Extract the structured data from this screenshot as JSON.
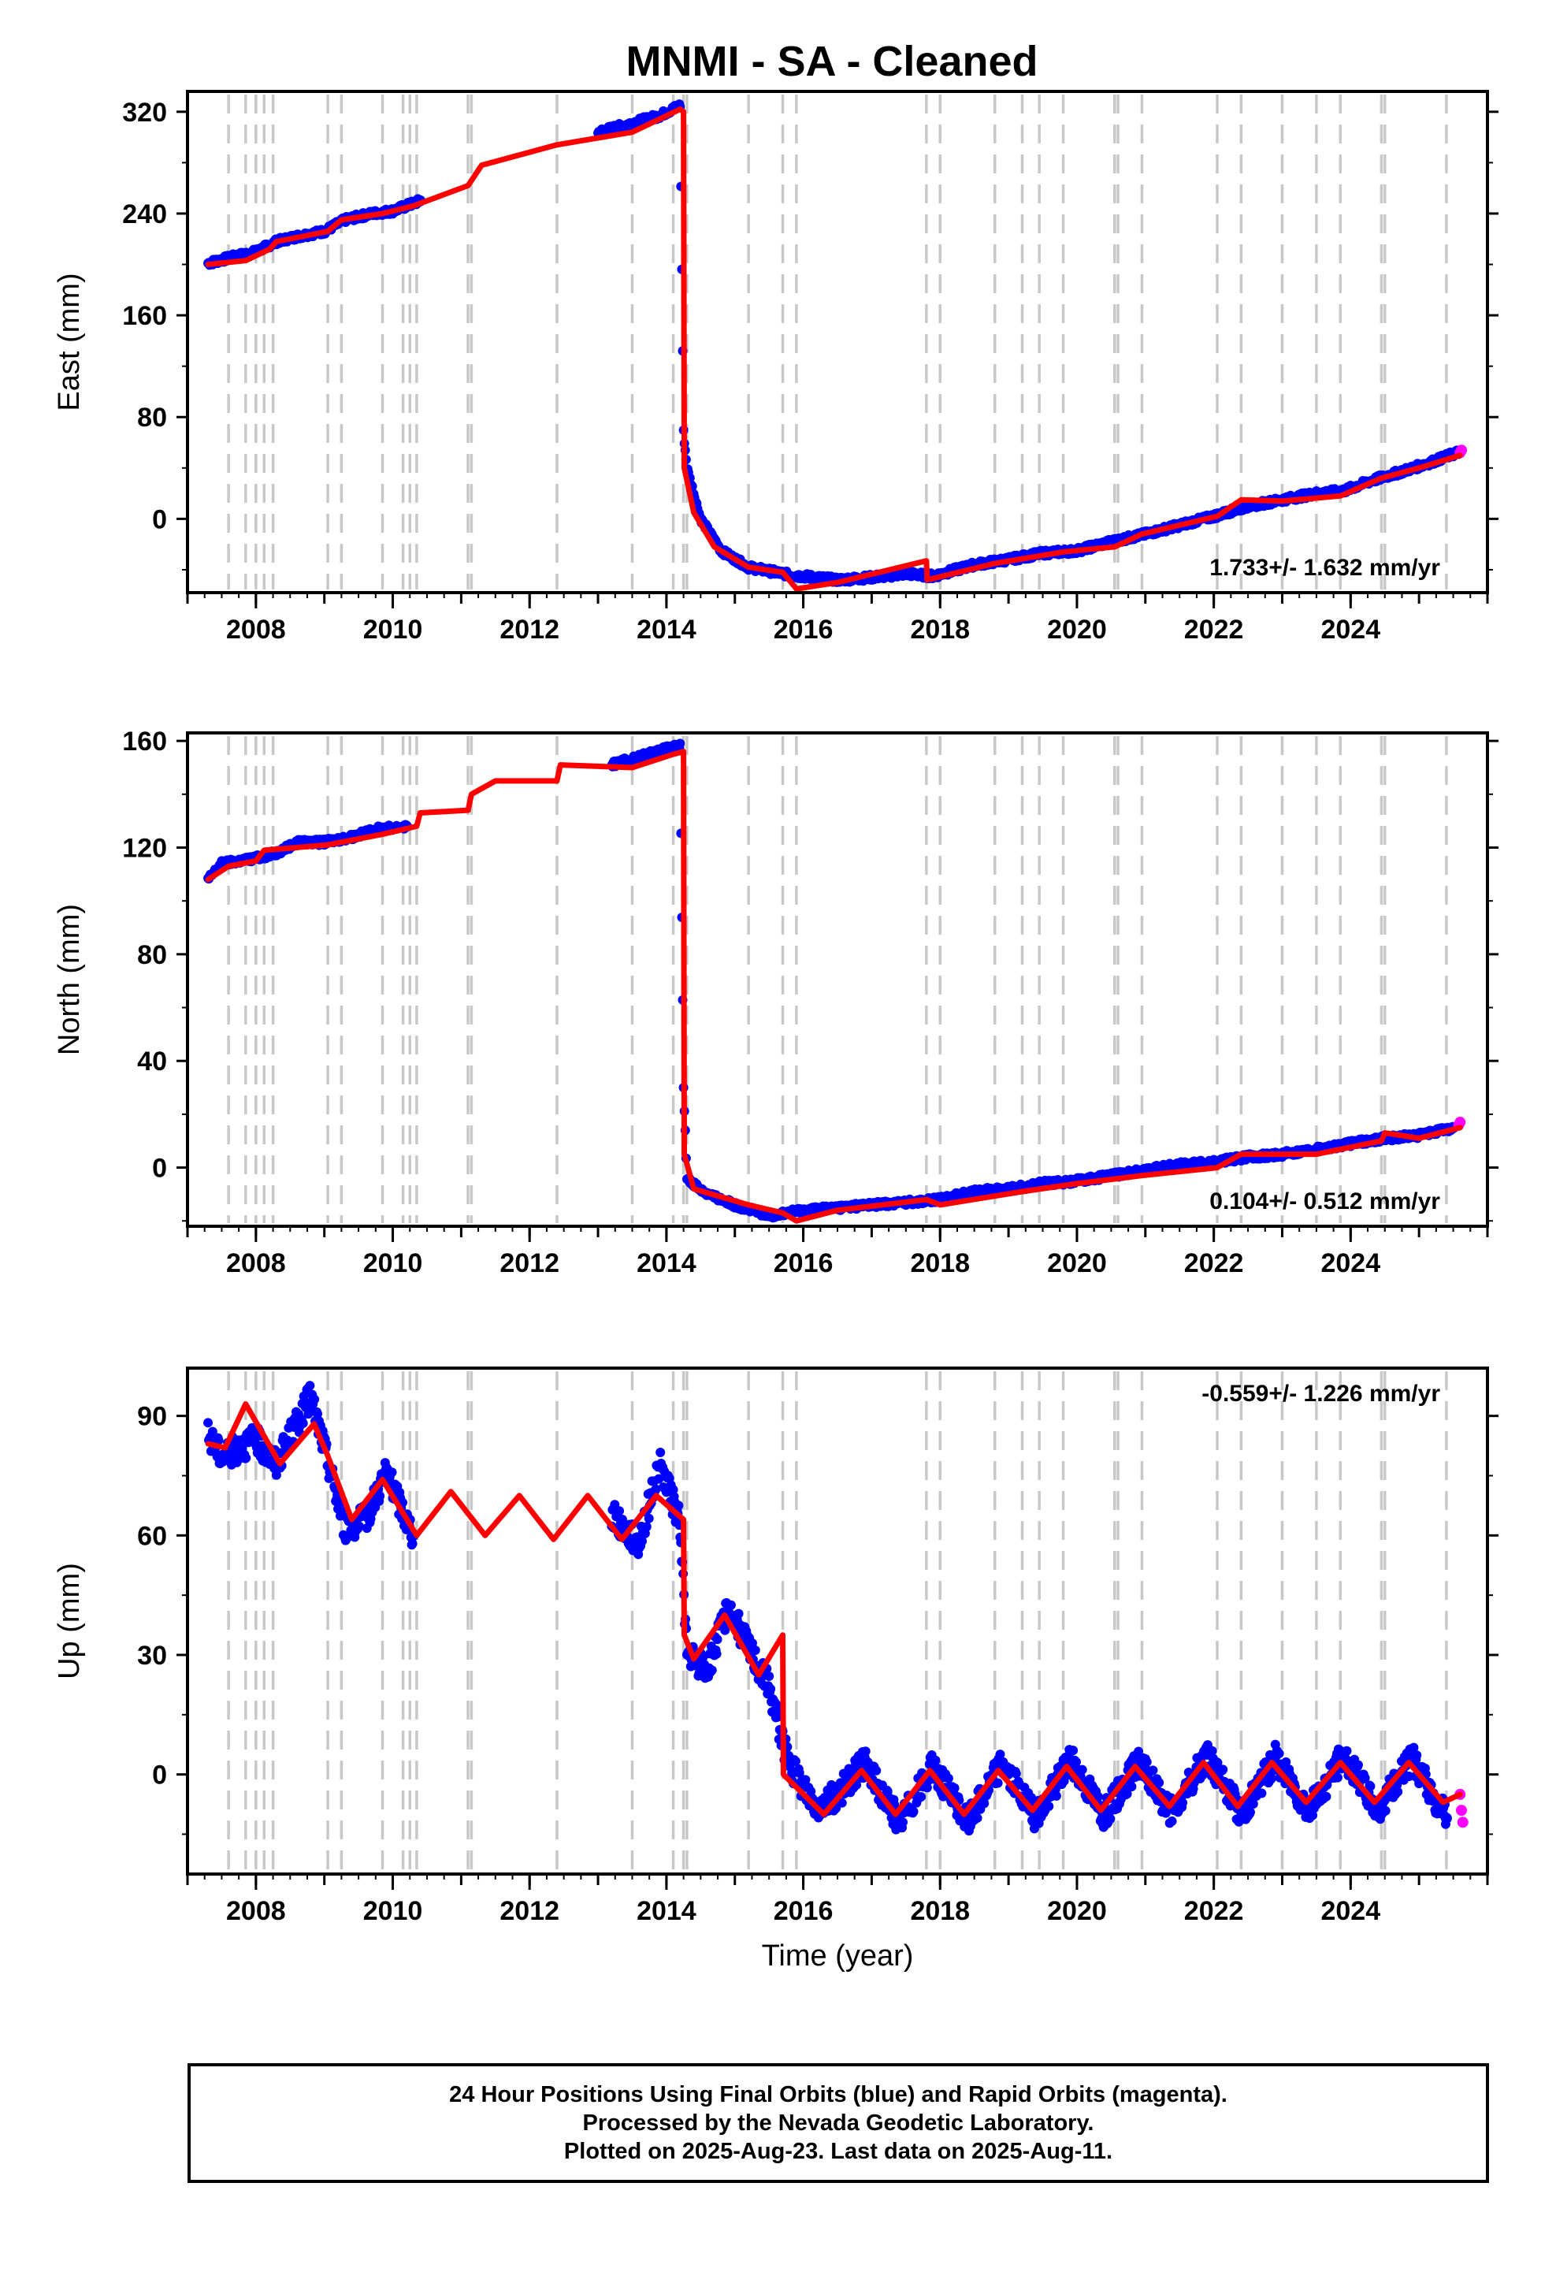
{
  "title": "MNMI  - SA - Cleaned",
  "colors": {
    "final": "#0000ff",
    "rapid": "#ff00ff",
    "model": "#ff0000",
    "steps": "#c8c8c8"
  },
  "footer": {
    "line1": "24 Hour Positions Using Final Orbits (blue) and Rapid Orbits (magenta).",
    "line2": "Processed by the Nevada Geodetic Laboratory.",
    "line3": "Plotted on 2025-Aug-23. Last data on 2025-Aug-11."
  },
  "chart_data": [
    {
      "type": "scatter",
      "component": "east",
      "ylabel": "East (mm)",
      "xlabel": "",
      "rate": "1.733+/- 1.632 mm/yr",
      "xlim": [
        2007.0,
        2026.0
      ],
      "ylim": [
        -58,
        336
      ],
      "yticks": [
        0,
        80,
        160,
        240,
        320
      ],
      "xticks": [
        2008,
        2010,
        2012,
        2014,
        2016,
        2018,
        2020,
        2022,
        2024
      ],
      "step_epochs": [
        2007.6,
        2007.85,
        2008.0,
        2008.12,
        2008.25,
        2009.05,
        2009.25,
        2009.85,
        2010.15,
        2010.25,
        2010.35,
        2011.1,
        2011.15,
        2012.4,
        2013.5,
        2014.1,
        2014.25,
        2014.3,
        2015.2,
        2015.7,
        2015.9,
        2017.8,
        2018.0,
        2018.8,
        2019.2,
        2019.45,
        2019.8,
        2020.55,
        2020.6,
        2020.95,
        2022.05,
        2022.4,
        2023.0,
        2023.5,
        2023.85,
        2024.45,
        2024.5,
        2025.4
      ],
      "observations": [
        {
          "x": 2007.3,
          "y": 201
        },
        {
          "x": 2007.6,
          "y": 205
        },
        {
          "x": 2008.0,
          "y": 210
        },
        {
          "x": 2008.3,
          "y": 218
        },
        {
          "x": 2008.6,
          "y": 222
        },
        {
          "x": 2009.0,
          "y": 226
        },
        {
          "x": 2009.3,
          "y": 235
        },
        {
          "x": 2009.7,
          "y": 240
        },
        {
          "x": 2010.0,
          "y": 242
        },
        {
          "x": 2010.4,
          "y": 250
        },
        {
          "x": 2013.0,
          "y": 304
        },
        {
          "x": 2013.5,
          "y": 311
        },
        {
          "x": 2013.9,
          "y": 317
        },
        {
          "x": 2014.2,
          "y": 325
        },
        {
          "x": 2014.25,
          "y": 68
        },
        {
          "x": 2014.3,
          "y": 40
        },
        {
          "x": 2014.5,
          "y": 0
        },
        {
          "x": 2014.8,
          "y": -25
        },
        {
          "x": 2015.2,
          "y": -38
        },
        {
          "x": 2015.8,
          "y": -44
        },
        {
          "x": 2016.5,
          "y": -48
        },
        {
          "x": 2017.0,
          "y": -46
        },
        {
          "x": 2017.5,
          "y": -43
        },
        {
          "x": 2017.9,
          "y": -45
        },
        {
          "x": 2018.5,
          "y": -36
        },
        {
          "x": 2019.0,
          "y": -32
        },
        {
          "x": 2019.5,
          "y": -27
        },
        {
          "x": 2020.0,
          "y": -25
        },
        {
          "x": 2020.5,
          "y": -18
        },
        {
          "x": 2021.0,
          "y": -12
        },
        {
          "x": 2021.5,
          "y": -5
        },
        {
          "x": 2022.0,
          "y": 2
        },
        {
          "x": 2022.5,
          "y": 10
        },
        {
          "x": 2023.0,
          "y": 15
        },
        {
          "x": 2023.5,
          "y": 20
        },
        {
          "x": 2023.9,
          "y": 22
        },
        {
          "x": 2024.3,
          "y": 30
        },
        {
          "x": 2024.8,
          "y": 38
        },
        {
          "x": 2025.2,
          "y": 45
        },
        {
          "x": 2025.6,
          "y": 53
        }
      ],
      "rapid_points": [
        {
          "x": 2025.6,
          "y": 52
        },
        {
          "x": 2025.62,
          "y": 54
        }
      ],
      "model": [
        {
          "x": 2007.3,
          "y": 200
        },
        {
          "x": 2007.85,
          "y": 203
        },
        {
          "x": 2008.2,
          "y": 212
        },
        {
          "x": 2008.3,
          "y": 218
        },
        {
          "x": 2009.05,
          "y": 226
        },
        {
          "x": 2009.25,
          "y": 235
        },
        {
          "x": 2009.85,
          "y": 240
        },
        {
          "x": 2010.3,
          "y": 246
        },
        {
          "x": 2011.1,
          "y": 262
        },
        {
          "x": 2011.3,
          "y": 278
        },
        {
          "x": 2012.4,
          "y": 294
        },
        {
          "x": 2013.5,
          "y": 304
        },
        {
          "x": 2014.2,
          "y": 322
        },
        {
          "x": 2014.25,
          "y": 320
        },
        {
          "x": 2014.26,
          "y": 40
        },
        {
          "x": 2014.4,
          "y": 5
        },
        {
          "x": 2014.7,
          "y": -22
        },
        {
          "x": 2015.2,
          "y": -38
        },
        {
          "x": 2015.7,
          "y": -42
        },
        {
          "x": 2015.9,
          "y": -55
        },
        {
          "x": 2016.5,
          "y": -50
        },
        {
          "x": 2017.8,
          "y": -33
        },
        {
          "x": 2017.81,
          "y": -48
        },
        {
          "x": 2018.8,
          "y": -35
        },
        {
          "x": 2019.8,
          "y": -26
        },
        {
          "x": 2020.55,
          "y": -22
        },
        {
          "x": 2020.95,
          "y": -12
        },
        {
          "x": 2022.05,
          "y": 2
        },
        {
          "x": 2022.4,
          "y": 15
        },
        {
          "x": 2023.0,
          "y": 14
        },
        {
          "x": 2023.85,
          "y": 18
        },
        {
          "x": 2024.45,
          "y": 32
        },
        {
          "x": 2025.0,
          "y": 40
        },
        {
          "x": 2025.6,
          "y": 50
        }
      ]
    },
    {
      "type": "scatter",
      "component": "north",
      "ylabel": "North (mm)",
      "xlabel": "",
      "rate": "0.104+/- 0.512 mm/yr",
      "xlim": [
        2007.0,
        2026.0
      ],
      "ylim": [
        -22,
        163
      ],
      "yticks": [
        0,
        40,
        80,
        120,
        160
      ],
      "xticks": [
        2008,
        2010,
        2012,
        2014,
        2016,
        2018,
        2020,
        2022,
        2024
      ],
      "step_epochs": [
        2007.6,
        2007.85,
        2008.0,
        2008.12,
        2008.25,
        2009.05,
        2009.25,
        2009.85,
        2010.15,
        2010.25,
        2010.35,
        2011.1,
        2011.15,
        2012.4,
        2013.5,
        2014.1,
        2014.25,
        2014.3,
        2015.2,
        2015.7,
        2015.9,
        2017.8,
        2018.0,
        2018.8,
        2019.2,
        2019.45,
        2019.8,
        2020.55,
        2020.6,
        2020.95,
        2022.05,
        2022.4,
        2023.0,
        2023.5,
        2023.85,
        2024.45,
        2024.5,
        2025.4
      ],
      "observations": [
        {
          "x": 2007.3,
          "y": 108
        },
        {
          "x": 2007.5,
          "y": 114
        },
        {
          "x": 2008.0,
          "y": 116
        },
        {
          "x": 2008.3,
          "y": 118
        },
        {
          "x": 2008.6,
          "y": 122
        },
        {
          "x": 2009.0,
          "y": 122
        },
        {
          "x": 2009.4,
          "y": 124
        },
        {
          "x": 2009.8,
          "y": 127
        },
        {
          "x": 2010.2,
          "y": 128
        },
        {
          "x": 2013.2,
          "y": 151
        },
        {
          "x": 2013.6,
          "y": 154
        },
        {
          "x": 2014.0,
          "y": 157
        },
        {
          "x": 2014.2,
          "y": 158
        },
        {
          "x": 2014.25,
          "y": 30
        },
        {
          "x": 2014.3,
          "y": -4
        },
        {
          "x": 2014.6,
          "y": -10
        },
        {
          "x": 2015.0,
          "y": -14
        },
        {
          "x": 2015.5,
          "y": -18
        },
        {
          "x": 2016.0,
          "y": -16
        },
        {
          "x": 2016.5,
          "y": -15
        },
        {
          "x": 2017.0,
          "y": -14
        },
        {
          "x": 2017.5,
          "y": -13
        },
        {
          "x": 2018.0,
          "y": -12
        },
        {
          "x": 2018.5,
          "y": -9
        },
        {
          "x": 2019.0,
          "y": -8
        },
        {
          "x": 2019.5,
          "y": -6
        },
        {
          "x": 2020.0,
          "y": -5
        },
        {
          "x": 2020.5,
          "y": -3
        },
        {
          "x": 2021.0,
          "y": -1
        },
        {
          "x": 2021.5,
          "y": 1
        },
        {
          "x": 2022.0,
          "y": 2
        },
        {
          "x": 2022.5,
          "y": 4
        },
        {
          "x": 2023.0,
          "y": 5
        },
        {
          "x": 2023.5,
          "y": 7
        },
        {
          "x": 2024.0,
          "y": 9
        },
        {
          "x": 2024.5,
          "y": 11
        },
        {
          "x": 2025.0,
          "y": 12
        },
        {
          "x": 2025.5,
          "y": 15
        }
      ],
      "rapid_points": [
        {
          "x": 2025.58,
          "y": 16
        },
        {
          "x": 2025.6,
          "y": 17
        }
      ],
      "model": [
        {
          "x": 2007.3,
          "y": 108
        },
        {
          "x": 2007.6,
          "y": 113
        },
        {
          "x": 2008.0,
          "y": 115
        },
        {
          "x": 2008.12,
          "y": 119
        },
        {
          "x": 2009.05,
          "y": 121
        },
        {
          "x": 2009.85,
          "y": 125
        },
        {
          "x": 2010.35,
          "y": 128
        },
        {
          "x": 2010.4,
          "y": 133
        },
        {
          "x": 2011.1,
          "y": 134
        },
        {
          "x": 2011.15,
          "y": 140
        },
        {
          "x": 2011.5,
          "y": 145
        },
        {
          "x": 2012.4,
          "y": 145
        },
        {
          "x": 2012.45,
          "y": 151
        },
        {
          "x": 2013.5,
          "y": 150
        },
        {
          "x": 2014.1,
          "y": 155
        },
        {
          "x": 2014.25,
          "y": 156
        },
        {
          "x": 2014.26,
          "y": 5
        },
        {
          "x": 2014.4,
          "y": -8
        },
        {
          "x": 2015.2,
          "y": -14
        },
        {
          "x": 2015.7,
          "y": -17
        },
        {
          "x": 2015.9,
          "y": -20
        },
        {
          "x": 2016.5,
          "y": -16
        },
        {
          "x": 2017.8,
          "y": -12
        },
        {
          "x": 2018.0,
          "y": -14
        },
        {
          "x": 2019.2,
          "y": -9
        },
        {
          "x": 2020.0,
          "y": -6
        },
        {
          "x": 2020.95,
          "y": -3
        },
        {
          "x": 2022.05,
          "y": 0
        },
        {
          "x": 2022.4,
          "y": 5
        },
        {
          "x": 2023.5,
          "y": 5
        },
        {
          "x": 2024.45,
          "y": 10
        },
        {
          "x": 2024.5,
          "y": 13
        },
        {
          "x": 2025.0,
          "y": 11
        },
        {
          "x": 2025.6,
          "y": 15
        }
      ]
    },
    {
      "type": "scatter",
      "component": "up",
      "ylabel": "Up (mm)",
      "xlabel": "Time (year)",
      "rate": "-0.559+/- 1.226 mm/yr",
      "xlim": [
        2007.0,
        2026.0
      ],
      "ylim": [
        -25,
        102
      ],
      "yticks": [
        0,
        30,
        60,
        90
      ],
      "xticks": [
        2008,
        2010,
        2012,
        2014,
        2016,
        2018,
        2020,
        2022,
        2024
      ],
      "step_epochs": [
        2007.6,
        2007.85,
        2008.0,
        2008.12,
        2008.25,
        2009.05,
        2009.25,
        2009.85,
        2010.15,
        2010.25,
        2010.35,
        2011.1,
        2011.15,
        2012.4,
        2013.5,
        2014.1,
        2014.25,
        2014.3,
        2015.2,
        2015.7,
        2015.9,
        2017.8,
        2018.0,
        2018.8,
        2019.2,
        2019.45,
        2019.8,
        2020.55,
        2020.6,
        2020.95,
        2022.05,
        2022.4,
        2023.0,
        2023.5,
        2023.85,
        2024.45,
        2024.5,
        2025.4
      ],
      "observations": [
        {
          "x": 2007.3,
          "y": 85
        },
        {
          "x": 2007.5,
          "y": 80
        },
        {
          "x": 2008.0,
          "y": 84
        },
        {
          "x": 2008.3,
          "y": 78
        },
        {
          "x": 2008.8,
          "y": 95
        },
        {
          "x": 2009.0,
          "y": 82
        },
        {
          "x": 2009.3,
          "y": 62
        },
        {
          "x": 2009.6,
          "y": 64
        },
        {
          "x": 2009.9,
          "y": 76
        },
        {
          "x": 2010.3,
          "y": 60
        },
        {
          "x": 2013.2,
          "y": 65
        },
        {
          "x": 2013.6,
          "y": 58
        },
        {
          "x": 2013.9,
          "y": 78
        },
        {
          "x": 2014.2,
          "y": 63
        },
        {
          "x": 2014.3,
          "y": 30
        },
        {
          "x": 2014.6,
          "y": 26
        },
        {
          "x": 2014.9,
          "y": 42
        },
        {
          "x": 2015.2,
          "y": 32
        },
        {
          "x": 2015.5,
          "y": 22
        },
        {
          "x": 2015.8,
          "y": 2
        },
        {
          "x": 2016.2,
          "y": -8
        },
        {
          "x": 2016.5,
          "y": -5
        },
        {
          "x": 2016.9,
          "y": 3
        },
        {
          "x": 2017.4,
          "y": -12
        },
        {
          "x": 2017.9,
          "y": 2
        },
        {
          "x": 2018.4,
          "y": -12
        },
        {
          "x": 2018.9,
          "y": 3
        },
        {
          "x": 2019.4,
          "y": -11
        },
        {
          "x": 2019.9,
          "y": 4
        },
        {
          "x": 2020.4,
          "y": -10
        },
        {
          "x": 2020.9,
          "y": 3
        },
        {
          "x": 2021.4,
          "y": -10
        },
        {
          "x": 2021.9,
          "y": 5
        },
        {
          "x": 2022.4,
          "y": -10
        },
        {
          "x": 2022.9,
          "y": 4
        },
        {
          "x": 2023.4,
          "y": -9
        },
        {
          "x": 2023.9,
          "y": 5
        },
        {
          "x": 2024.4,
          "y": -9
        },
        {
          "x": 2024.9,
          "y": 4
        },
        {
          "x": 2025.4,
          "y": -11
        }
      ],
      "rapid_points": [
        {
          "x": 2025.6,
          "y": -5
        },
        {
          "x": 2025.62,
          "y": -9
        },
        {
          "x": 2025.64,
          "y": -12
        }
      ],
      "model": [
        {
          "x": 2007.3,
          "y": 83
        },
        {
          "x": 2007.55,
          "y": 82
        },
        {
          "x": 2007.85,
          "y": 93
        },
        {
          "x": 2008.35,
          "y": 78
        },
        {
          "x": 2008.85,
          "y": 88
        },
        {
          "x": 2009.05,
          "y": 80
        },
        {
          "x": 2009.4,
          "y": 64
        },
        {
          "x": 2009.85,
          "y": 74
        },
        {
          "x": 2010.35,
          "y": 60
        },
        {
          "x": 2010.85,
          "y": 71
        },
        {
          "x": 2011.35,
          "y": 60
        },
        {
          "x": 2011.85,
          "y": 70
        },
        {
          "x": 2012.35,
          "y": 59
        },
        {
          "x": 2012.85,
          "y": 70
        },
        {
          "x": 2013.35,
          "y": 59
        },
        {
          "x": 2013.85,
          "y": 70
        },
        {
          "x": 2014.25,
          "y": 64
        },
        {
          "x": 2014.26,
          "y": 35
        },
        {
          "x": 2014.4,
          "y": 29
        },
        {
          "x": 2014.85,
          "y": 40
        },
        {
          "x": 2015.35,
          "y": 25
        },
        {
          "x": 2015.7,
          "y": 35
        },
        {
          "x": 2015.71,
          "y": 0
        },
        {
          "x": 2016.3,
          "y": -10
        },
        {
          "x": 2016.85,
          "y": 1
        },
        {
          "x": 2017.35,
          "y": -10
        },
        {
          "x": 2017.85,
          "y": 1
        },
        {
          "x": 2018.35,
          "y": -10
        },
        {
          "x": 2018.85,
          "y": 1
        },
        {
          "x": 2019.35,
          "y": -9
        },
        {
          "x": 2019.85,
          "y": 2
        },
        {
          "x": 2020.35,
          "y": -9
        },
        {
          "x": 2020.85,
          "y": 2
        },
        {
          "x": 2021.35,
          "y": -8
        },
        {
          "x": 2021.85,
          "y": 3
        },
        {
          "x": 2022.35,
          "y": -8
        },
        {
          "x": 2022.85,
          "y": 3
        },
        {
          "x": 2023.35,
          "y": -7
        },
        {
          "x": 2023.85,
          "y": 3
        },
        {
          "x": 2024.35,
          "y": -7
        },
        {
          "x": 2024.85,
          "y": 3
        },
        {
          "x": 2025.35,
          "y": -7
        },
        {
          "x": 2025.6,
          "y": -5
        }
      ]
    }
  ]
}
